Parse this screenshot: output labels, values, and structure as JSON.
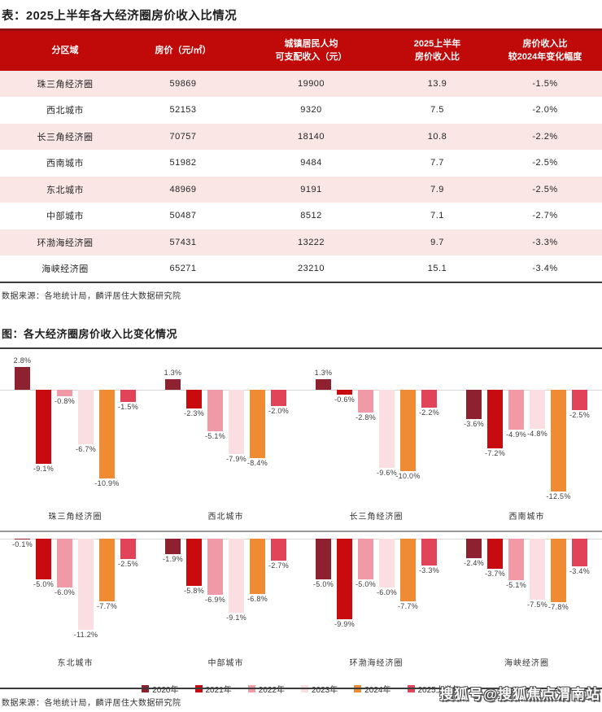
{
  "page": {
    "table_title": "表：2025上半年各大经济圈房价收入比情况",
    "table_source": "数据来源：各地统计局，麟评居住大数据研究院",
    "chart_title": "图：各大经济圈房价收入比变化情况",
    "chart_source": "数据来源：各地统计局，麟评居住大数据研究院",
    "watermark": "搜狐号@搜狐焦点渭南站"
  },
  "table": {
    "headers": [
      {
        "lines": [
          "分区域"
        ]
      },
      {
        "lines": [
          "房价（元/㎡）"
        ]
      },
      {
        "lines": [
          "城镇居民人均",
          "可支配收入（元）"
        ]
      },
      {
        "lines": [
          "2025上半年",
          "房价收入比"
        ]
      },
      {
        "lines": [
          "房价收入比",
          "较2024年变化幅度"
        ]
      }
    ],
    "rows": [
      [
        "珠三角经济圈",
        "59869",
        "19900",
        "13.9",
        "-1.5%"
      ],
      [
        "西北城市",
        "52153",
        "9320",
        "7.5",
        "-2.0%"
      ],
      [
        "长三角经济圈",
        "70757",
        "18140",
        "10.8",
        "-2.2%"
      ],
      [
        "西南城市",
        "51982",
        "9484",
        "7.7",
        "-2.5%"
      ],
      [
        "东北城市",
        "48969",
        "9191",
        "7.9",
        "-2.5%"
      ],
      [
        "中部城市",
        "50487",
        "8512",
        "7.1",
        "-2.7%"
      ],
      [
        "环渤海经济圈",
        "57431",
        "13222",
        "9.7",
        "-3.3%"
      ],
      [
        "海峡经济圈",
        "65271",
        "23210",
        "15.1",
        "-3.4%"
      ]
    ]
  },
  "colors": {
    "header_bg": "#c00a0a",
    "header_top_border": "#8c1414",
    "row_alt_bg": "#fbe6e6",
    "divider_dark": "#3c3c3c"
  },
  "chart_data": {
    "type": "bar",
    "title": "各大经济圈房价收入比变化情况",
    "unit": "%",
    "value_label_format": "0.0%",
    "legend_position": "bottom",
    "panels_per_row": 4,
    "grid": false,
    "ylim": [
      -13,
      3.5
    ],
    "categories": [
      "珠三角经济圈",
      "西北城市",
      "长三角经济圈",
      "西南城市",
      "东北城市",
      "中部城市",
      "环渤海经济圈",
      "海峡经济圈"
    ],
    "series": [
      {
        "name": "2020年",
        "values": [
          2.8,
          1.3,
          1.3,
          -3.6,
          -0.1,
          -1.9,
          -5.0,
          -2.4
        ]
      },
      {
        "name": "2021年",
        "values": [
          -9.1,
          -2.3,
          -0.6,
          -7.2,
          -5.0,
          -5.8,
          -9.9,
          -3.7
        ]
      },
      {
        "name": "2022年",
        "values": [
          -0.8,
          -5.1,
          -2.8,
          -4.9,
          -6.0,
          -6.9,
          -5.0,
          -5.1
        ]
      },
      {
        "name": "2023年",
        "values": [
          -6.7,
          -7.9,
          -9.6,
          -4.8,
          -11.2,
          -9.1,
          -6.0,
          -7.5
        ]
      },
      {
        "name": "2024年",
        "values": [
          -10.9,
          -8.4,
          -10.0,
          -12.5,
          -7.7,
          -6.8,
          -7.7,
          -7.8
        ]
      },
      {
        "name": "2025上半年",
        "values": [
          -1.5,
          -2.0,
          -2.2,
          -2.5,
          -2.5,
          -2.7,
          -3.3,
          -3.4
        ]
      }
    ],
    "colors": [
      "#8e2130",
      "#c70b0e",
      "#ef9aa6",
      "#fbdee2",
      "#ee8b33",
      "#e14459"
    ]
  }
}
